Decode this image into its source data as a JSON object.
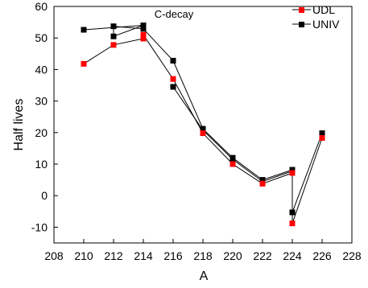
{
  "chart_data": {
    "type": "line",
    "title": "C-decay",
    "xlabel": "A",
    "ylabel": "Half lives",
    "xlim": [
      208,
      228
    ],
    "ylim": [
      -15,
      60
    ],
    "xticks": [
      208,
      210,
      212,
      214,
      216,
      218,
      220,
      222,
      224,
      226,
      228
    ],
    "yticks": [
      -10,
      0,
      10,
      20,
      30,
      40,
      50,
      60
    ],
    "grid": false,
    "legend_position": "top-right",
    "series": [
      {
        "name": "UDL",
        "color": "#ff0000",
        "marker": "square",
        "x": [
          210,
          212,
          214,
          214,
          216,
          218,
          220,
          222,
          224,
          224,
          226
        ],
        "y": [
          41.8,
          47.8,
          49.8,
          51.0,
          37.0,
          19.8,
          10.0,
          3.8,
          7.2,
          -8.8,
          18.3
        ]
      },
      {
        "name": "UNIV",
        "color": "#000000",
        "marker": "square",
        "x": [
          210,
          214,
          212,
          212,
          214,
          216,
          218,
          220,
          222,
          224,
          224,
          226
        ],
        "y": [
          52.6,
          54.0,
          50.5,
          53.7,
          52.9,
          42.8,
          21.2,
          12.0,
          5.0,
          8.2,
          -5.3,
          19.8
        ]
      },
      {
        "name": "",
        "color": "#000000",
        "marker": "square",
        "x": [
          216,
          218,
          220,
          222,
          224
        ],
        "y": [
          34.5,
          20.8,
          11.5,
          4.5,
          7.8
        ]
      }
    ]
  }
}
